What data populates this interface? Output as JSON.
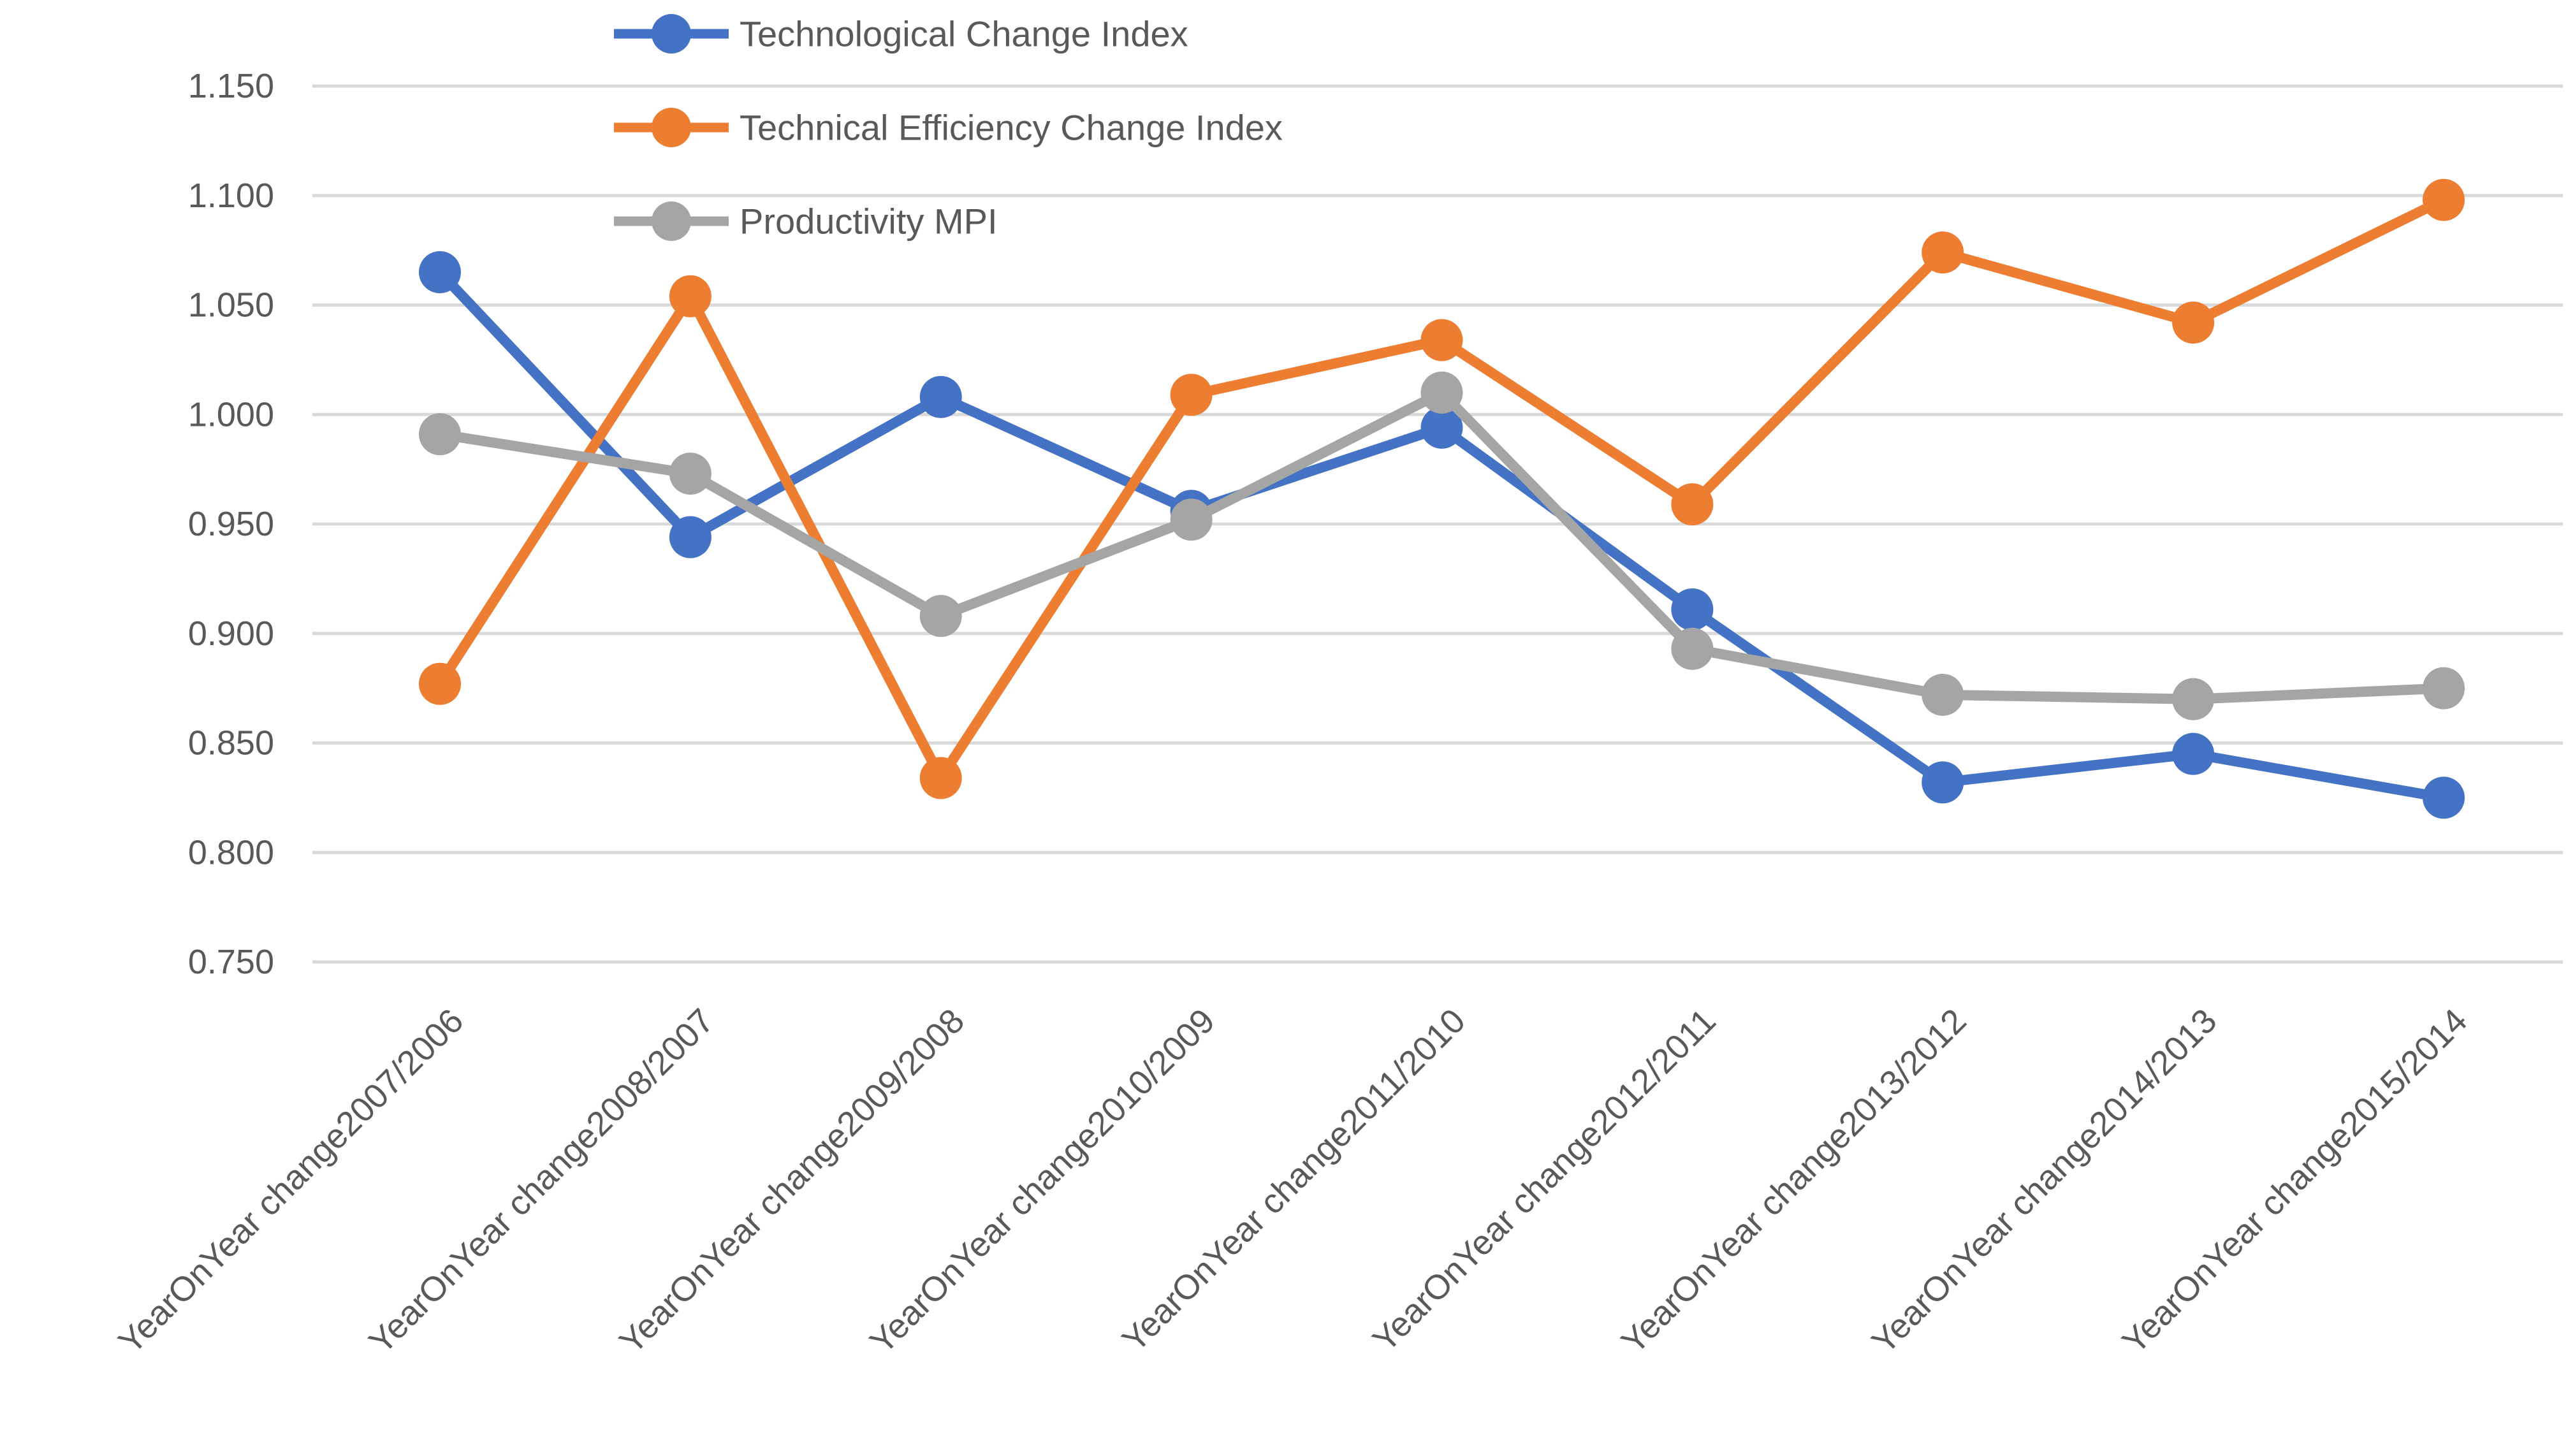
{
  "chart_data": {
    "type": "line",
    "title": "",
    "xlabel": "",
    "ylabel": "",
    "categories": [
      "YearOnYear change2007/2006",
      "YearOnYear change2008/2007",
      "YearOnYear change2009/2008",
      "YearOnYear change2010/2009",
      "YearOnYear change2011/2010",
      "YearOnYear change2012/2011",
      "YearOnYear change2013/2012",
      "YearOnYear change2014/2013",
      "YearOnYear change2015/2014"
    ],
    "series": [
      {
        "name": "Technological Change Index",
        "color": "#4472C4",
        "values": [
          1.065,
          0.944,
          1.008,
          0.956,
          0.994,
          0.911,
          0.832,
          0.845,
          0.825
        ]
      },
      {
        "name": "Technical  Efficiency Change Index",
        "color": "#ED7D31",
        "values": [
          0.877,
          1.054,
          0.834,
          1.009,
          1.034,
          0.959,
          1.074,
          1.042,
          1.098
        ]
      },
      {
        "name": "Productivity MPI",
        "color": "#A5A5A5",
        "values": [
          0.991,
          0.973,
          0.908,
          0.952,
          1.01,
          0.893,
          0.872,
          0.87,
          0.875
        ]
      }
    ],
    "ylim": [
      0.75,
      1.15
    ],
    "ytick_step": 0.05,
    "ytick_labels": [
      "1.150",
      "1.100",
      "1.050",
      "1.000",
      "0.950",
      "0.900",
      "0.850",
      "0.800",
      "0.750"
    ],
    "grid": true,
    "gridline_color": "#D9D9D9",
    "axis_text_color": "#595959",
    "legend_position": "top-left-inside",
    "marker_style": "circle",
    "x_label_rotation_deg": -45
  }
}
